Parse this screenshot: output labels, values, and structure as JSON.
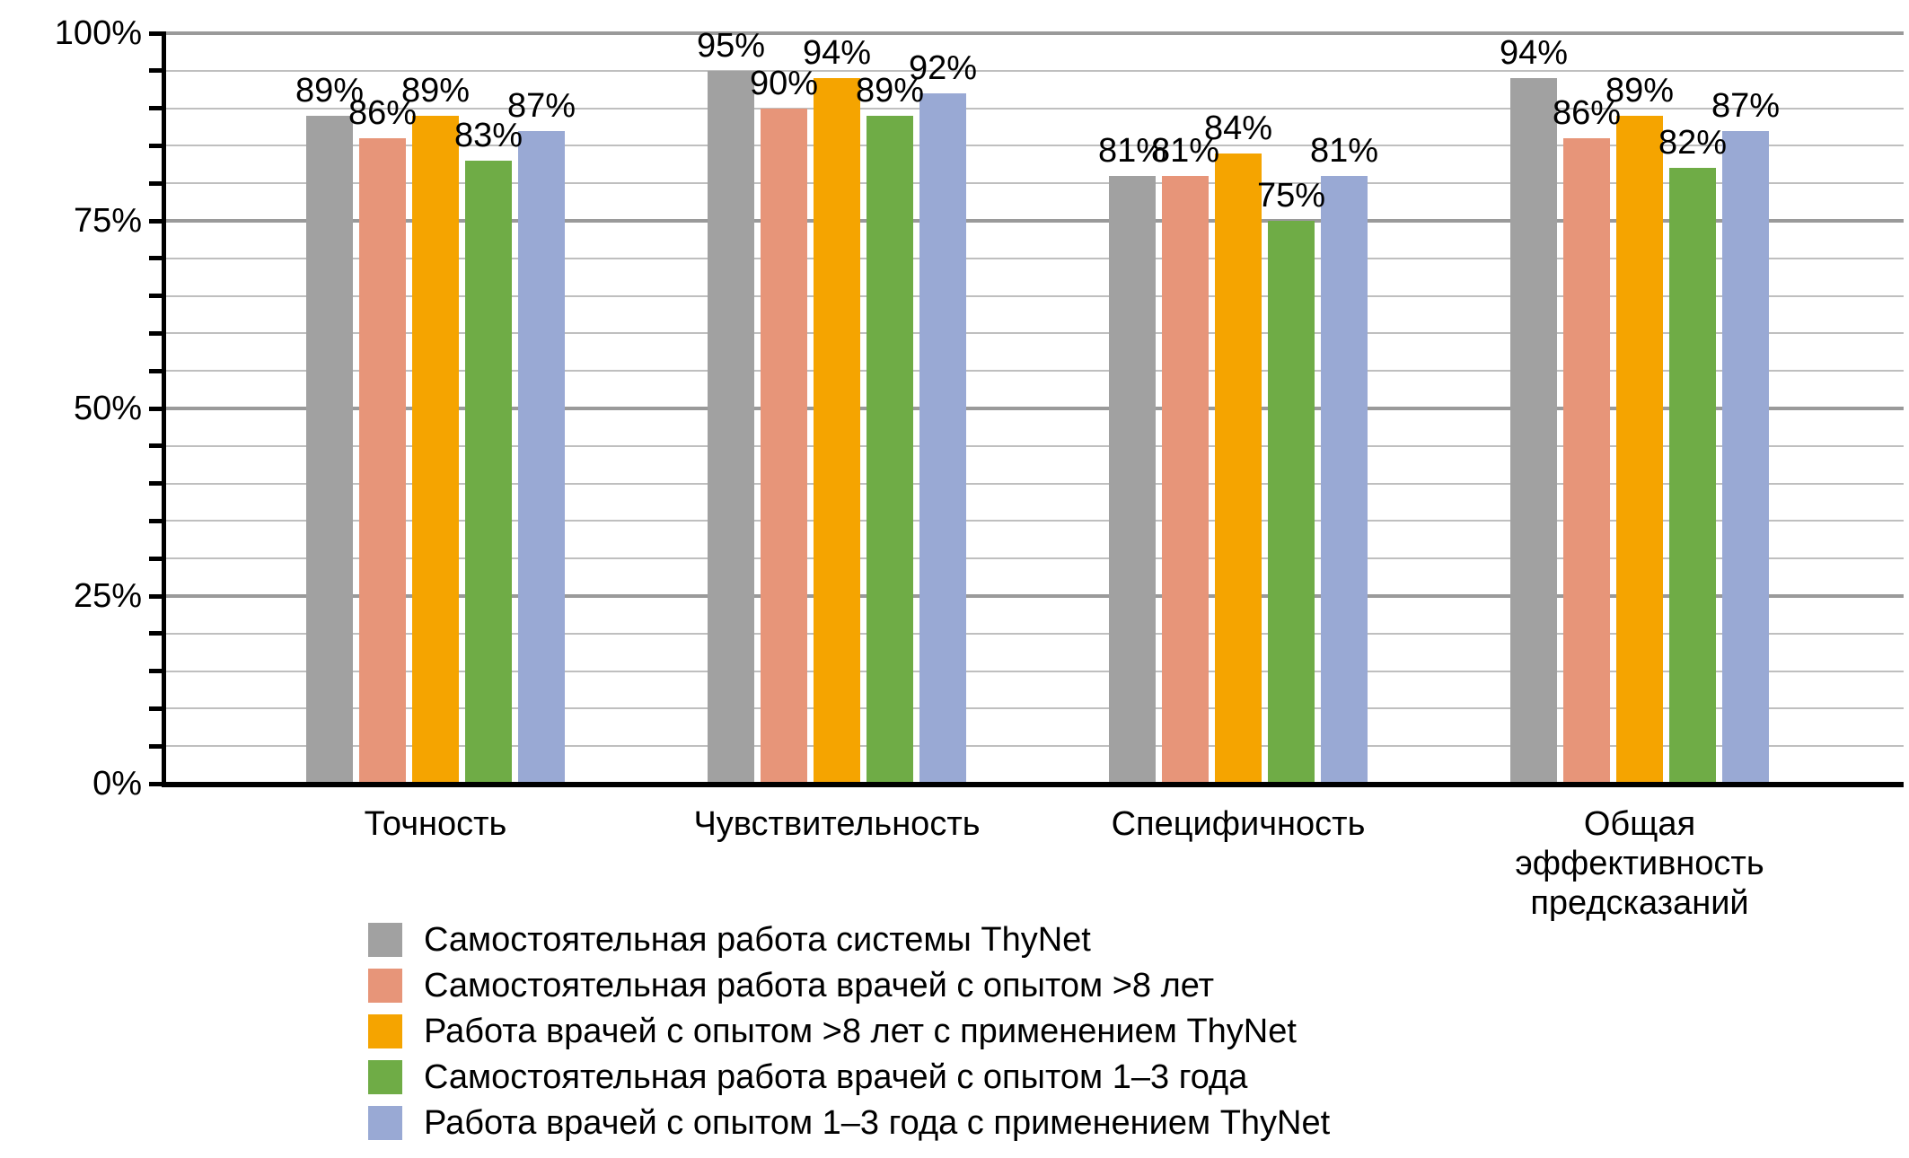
{
  "chart_data": {
    "type": "bar",
    "title": "",
    "categories": [
      "Точность",
      "Чувствительность",
      "Специфичность",
      "Общая эффективность предсказаний"
    ],
    "series": [
      {
        "name": "Самостоятельная работа системы ThyNet",
        "color": "#A1A1A1",
        "values": [
          89,
          95,
          81,
          94
        ]
      },
      {
        "name": "Самостоятельная работа врачей с опытом >8 лет",
        "color": "#E79579",
        "values": [
          86,
          90,
          81,
          86
        ]
      },
      {
        "name": "Работа врачей с опытом >8 лет с применением ThyNet",
        "color": "#F5A400",
        "values": [
          89,
          94,
          84,
          89
        ]
      },
      {
        "name": "Самостоятельная работа врачей с опытом 1–3 года",
        "color": "#6FAC46",
        "values": [
          83,
          89,
          75,
          82
        ]
      },
      {
        "name": "Работа врачей с опытом 1–3 года с применением ThyNet",
        "color": "#99A9D4",
        "values": [
          87,
          92,
          81,
          87
        ]
      }
    ],
    "value_suffix": "%",
    "data_labels": true,
    "y_axis": {
      "min": 0,
      "max": 100,
      "tick_labels": [
        "0%",
        "25%",
        "50%",
        "75%",
        "100%"
      ],
      "tick_values": [
        0,
        25,
        50,
        75,
        100
      ],
      "minor_step": 5,
      "major_step": 25
    },
    "grid": true,
    "legend_position": "bottom-left",
    "colors": {
      "axis": "#000000",
      "gridline_minor": "#BFBFBF",
      "gridline_major": "#9A9A9A",
      "text": "#000000",
      "background": "#FFFFFF"
    }
  }
}
